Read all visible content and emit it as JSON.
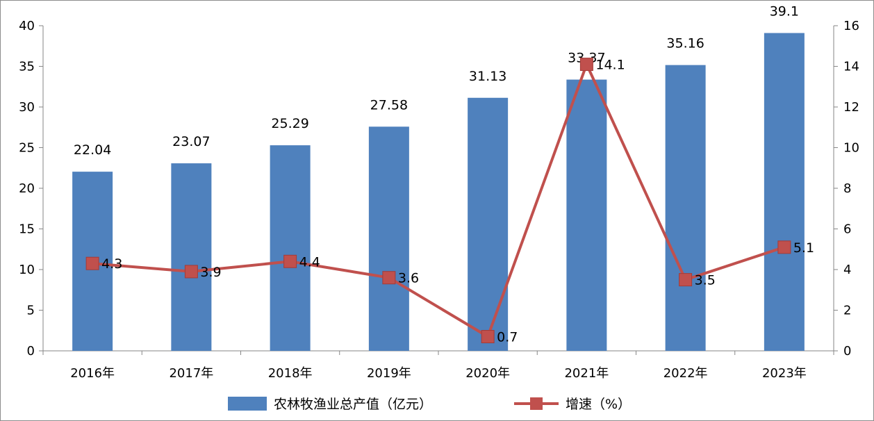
{
  "chart_data": {
    "type": "bar",
    "categories": [
      "2016年",
      "2017年",
      "2018年",
      "2019年",
      "2020年",
      "2021年",
      "2022年",
      "2023年"
    ],
    "series": [
      {
        "name": "农林牧渔业总产值（亿元）",
        "type": "bar",
        "axis": "left",
        "color": "#4f81bd",
        "values": [
          22.04,
          23.07,
          25.29,
          27.58,
          31.13,
          33.37,
          35.16,
          39.1
        ],
        "labels": [
          "22.04",
          "23.07",
          "25.29",
          "27.58",
          "31.13",
          "33.37",
          "35.16",
          "39.1"
        ]
      },
      {
        "name": "增速（%）",
        "type": "line",
        "axis": "right",
        "color": "#c0504d",
        "values": [
          4.3,
          3.9,
          4.4,
          3.6,
          0.7,
          14.1,
          3.5,
          5.1
        ],
        "labels": [
          "4.3",
          "3.9",
          "4.4",
          "3.6",
          "0.7",
          "14.1",
          "3.5",
          "5.1"
        ]
      }
    ],
    "y_left": {
      "min": 0,
      "max": 40,
      "ticks": [
        0,
        5,
        10,
        15,
        20,
        25,
        30,
        35,
        40
      ]
    },
    "y_right": {
      "min": 0,
      "max": 16,
      "ticks": [
        0,
        2,
        4,
        6,
        8,
        10,
        12,
        14,
        16
      ]
    },
    "grid": false,
    "legend_position": "bottom"
  }
}
